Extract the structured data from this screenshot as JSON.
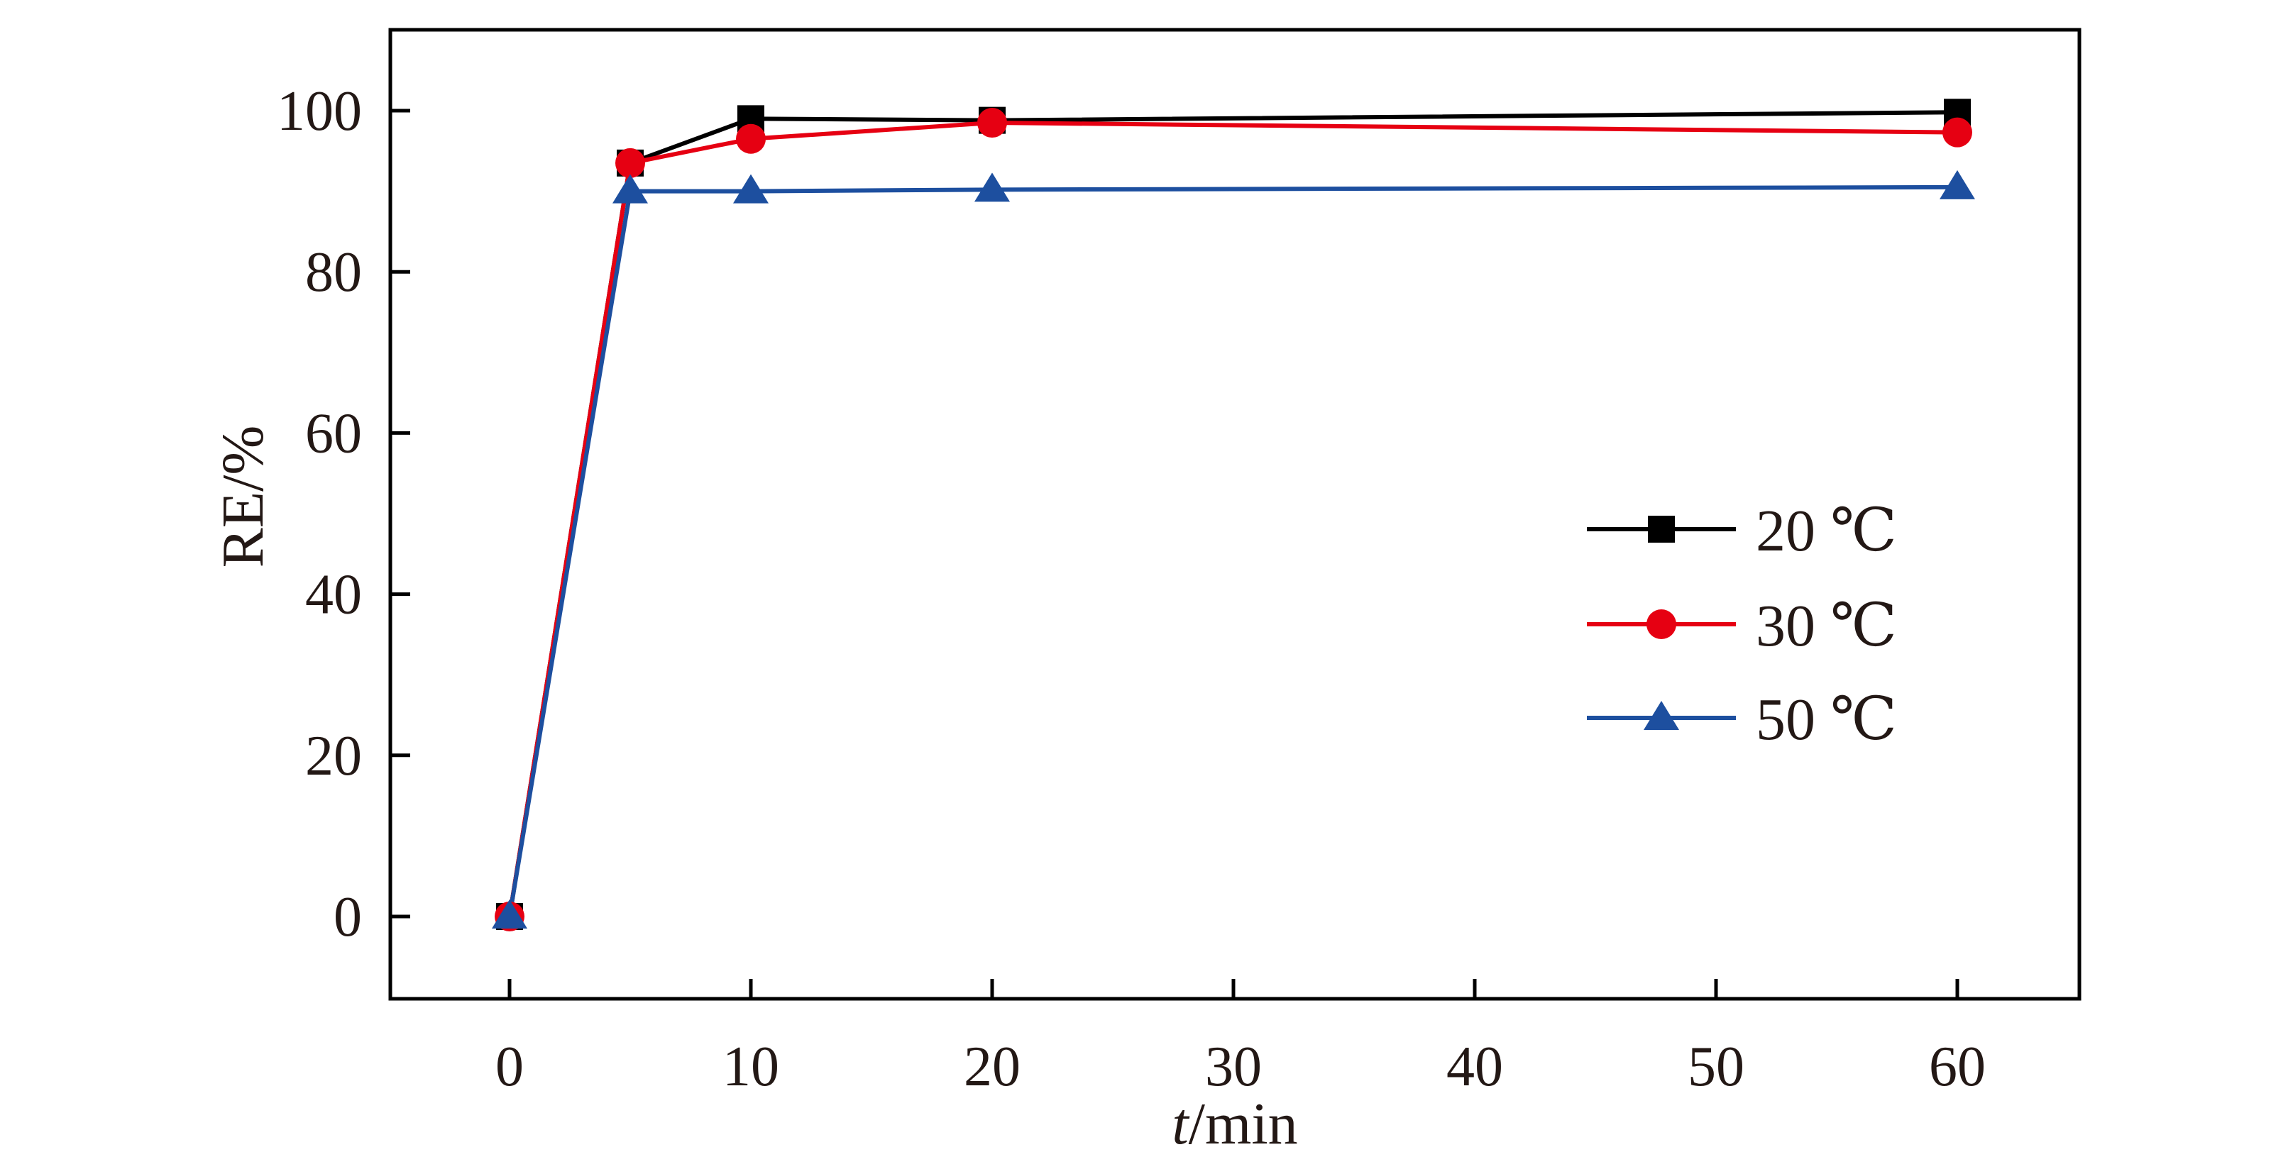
{
  "chart_data": {
    "type": "line",
    "x": [
      0,
      5,
      10,
      20,
      60
    ],
    "xlabel_italic": "t",
    "xlabel_rest": "/min",
    "ylabel": "RE/%",
    "xlim": [
      -5,
      65
    ],
    "ylim": [
      -10,
      110
    ],
    "xticks": [
      0,
      10,
      20,
      30,
      40,
      50,
      60
    ],
    "yticks": [
      0,
      20,
      40,
      60,
      80,
      100
    ],
    "grid": false,
    "legend_position": "center-right",
    "series": [
      {
        "name": "20 ℃",
        "color": "#000000",
        "marker": "square",
        "values": [
          0,
          93.5,
          99.0,
          98.8,
          99.8
        ]
      },
      {
        "name": "30 ℃",
        "color": "#e60012",
        "marker": "circle",
        "values": [
          0,
          93.5,
          96.5,
          98.5,
          97.3
        ]
      },
      {
        "name": "50 ℃",
        "color": "#1d4f9f",
        "marker": "triangle",
        "values": [
          0,
          90.0,
          90.0,
          90.2,
          90.5
        ]
      }
    ]
  }
}
